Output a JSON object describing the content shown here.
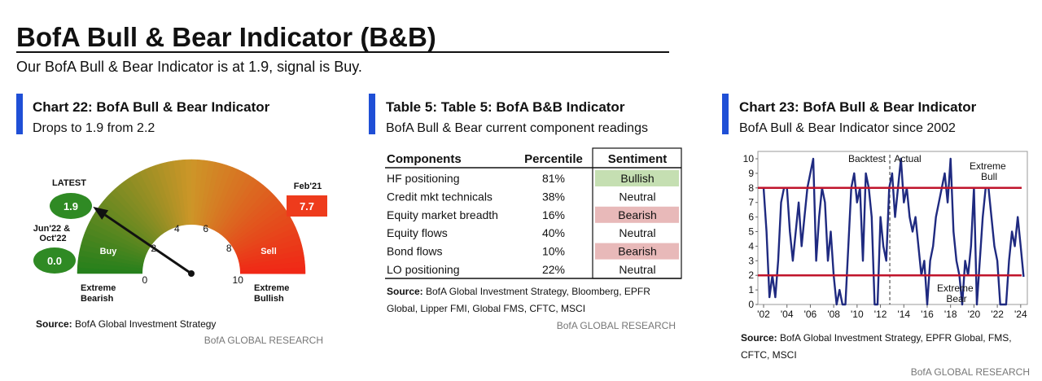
{
  "header": {
    "title": "BofA Bull & Bear Indicator (B&B)",
    "subtitle": "Our BofA Bull & Bear Indicator is at 1.9, signal is Buy."
  },
  "table": {
    "title": "Table 5: Table 5: BofA B&B Indicator",
    "subtitle": "BofA Bull & Bear current component readings",
    "columns": [
      "Components",
      "Percentile",
      "Sentiment"
    ],
    "rows": [
      [
        "HF positioning",
        "81%",
        "Bullish"
      ],
      [
        "Credit mkt technicals",
        "38%",
        "Neutral"
      ],
      [
        "Equity market breadth",
        "16%",
        "Bearish"
      ],
      [
        "Equity flows",
        "40%",
        "Neutral"
      ],
      [
        "Bond flows",
        "10%",
        "Bearish"
      ],
      [
        "LO positioning",
        "22%",
        "Neutral"
      ]
    ],
    "sentiment_colors": {
      "Bullish": "#c5dfb2",
      "Bearish": "#e8b9b9"
    },
    "source": {
      "label": "Source:",
      "lines": [
        "BofA Global Investment Strategy, Bloomberg, EPFR",
        "Global, Lipper FMI, Global FMS, CFTC, MSCI"
      ]
    },
    "footer": "BofA GLOBAL RESEARCH"
  },
  "chart_data": [
    {
      "type": "gauge",
      "title": "Chart 22: BofA Bull & Bear Indicator",
      "subtitle": "Drops to 1.9 from 2.2",
      "value": 1.9,
      "xlim": [
        0,
        10
      ],
      "ticks": [
        0,
        2,
        4,
        6,
        8,
        10
      ],
      "zones": [
        "Buy",
        "Sell"
      ],
      "ends": [
        "Extreme Bearish",
        "Extreme Bullish"
      ],
      "markers": [
        {
          "name": "LATEST",
          "value": 1.9,
          "color": "#2f8a24"
        },
        {
          "name": "Jun'22 & Oct'22",
          "value": 0,
          "value_label": "0.0",
          "color": "#2f8a24"
        },
        {
          "name": "Feb'21",
          "value": 7.7,
          "color": "#ee3b1c"
        }
      ],
      "source": {
        "label": "Source:",
        "lines": [
          "BofA Global Investment Strategy"
        ]
      },
      "footer": "BofA GLOBAL RESEARCH"
    },
    {
      "type": "line",
      "title": "Chart 23: BofA Bull & Bear Indicator",
      "subtitle": "BofA Bull & Bear Indicator since 2002",
      "color": "#1f2a80",
      "x": [
        2002.0,
        2002.25,
        2002.5,
        2002.75,
        2003.0,
        2003.25,
        2003.5,
        2003.75,
        2004.0,
        2004.25,
        2004.5,
        2004.75,
        2005.0,
        2005.25,
        2005.5,
        2005.75,
        2006.0,
        2006.25,
        2006.5,
        2006.75,
        2007.0,
        2007.25,
        2007.5,
        2007.75,
        2008.0,
        2008.25,
        2008.5,
        2008.75,
        2009.0,
        2009.25,
        2009.5,
        2009.75,
        2010.0,
        2010.25,
        2010.5,
        2010.75,
        2011.0,
        2011.25,
        2011.5,
        2011.75,
        2012.0,
        2012.25,
        2012.5,
        2012.75,
        2013.0,
        2013.25,
        2013.5,
        2013.75,
        2014.0,
        2014.25,
        2014.5,
        2014.75,
        2015.0,
        2015.25,
        2015.5,
        2015.75,
        2016.0,
        2016.25,
        2016.5,
        2016.75,
        2017.0,
        2017.25,
        2017.5,
        2017.75,
        2018.0,
        2018.25,
        2018.5,
        2018.75,
        2019.0,
        2019.25,
        2019.5,
        2019.75,
        2020.0,
        2020.25,
        2020.5,
        2020.75,
        2021.0,
        2021.25,
        2021.5,
        2021.75,
        2022.0,
        2022.25,
        2022.5,
        2022.75,
        2023.0,
        2023.25,
        2023.5,
        2023.75,
        2024.0,
        2024.25
      ],
      "values": [
        8,
        5,
        0.5,
        2,
        0.5,
        3,
        7,
        8,
        8,
        5,
        3,
        5,
        7,
        4,
        6,
        8,
        9,
        10,
        3,
        6,
        8,
        7,
        3,
        5,
        2,
        0,
        1,
        0,
        0,
        4,
        8,
        9,
        7,
        8,
        3,
        9,
        8,
        6,
        0,
        0,
        6,
        4,
        3,
        8,
        9,
        6,
        8,
        10,
        7,
        8,
        6,
        5,
        6,
        4,
        2,
        3,
        0,
        3,
        4,
        6,
        7,
        8,
        9,
        7,
        10,
        5,
        3,
        2,
        0,
        3,
        2,
        4,
        8,
        0,
        3,
        6,
        8,
        8,
        6,
        4,
        3,
        0,
        0,
        0,
        3,
        5,
        4,
        6,
        4,
        1.9
      ],
      "xlim": [
        2002,
        2024.5
      ],
      "ylim": [
        0,
        10
      ],
      "xticks": [
        {
          "value": 2002,
          "label": "'02"
        },
        {
          "value": 2004,
          "label": "'04"
        },
        {
          "value": 2006,
          "label": "'06"
        },
        {
          "value": 2008,
          "label": "'08"
        },
        {
          "value": 2010,
          "label": "'10"
        },
        {
          "value": 2012,
          "label": "'12"
        },
        {
          "value": 2014,
          "label": "'14"
        },
        {
          "value": 2016,
          "label": "'16"
        },
        {
          "value": 2018,
          "label": "'18"
        },
        {
          "value": 2020,
          "label": "'20"
        },
        {
          "value": 2022,
          "label": "'22"
        },
        {
          "value": 2024,
          "label": "'24"
        }
      ],
      "yticks": [
        0,
        1,
        2,
        3,
        4,
        5,
        6,
        7,
        8,
        9,
        10
      ],
      "hlines": [
        8,
        2
      ],
      "hline_color": "#c0142b",
      "split_x": 2012.8,
      "annotations": [
        "Backtest",
        "Actual",
        "Extreme Bull",
        "Extreme Bear"
      ],
      "source": {
        "label": "Source:",
        "lines": [
          "BofA Global Investment Strategy, EPFR Global, FMS,",
          "CFTC, MSCI"
        ]
      },
      "footer": "BofA GLOBAL RESEARCH"
    }
  ]
}
